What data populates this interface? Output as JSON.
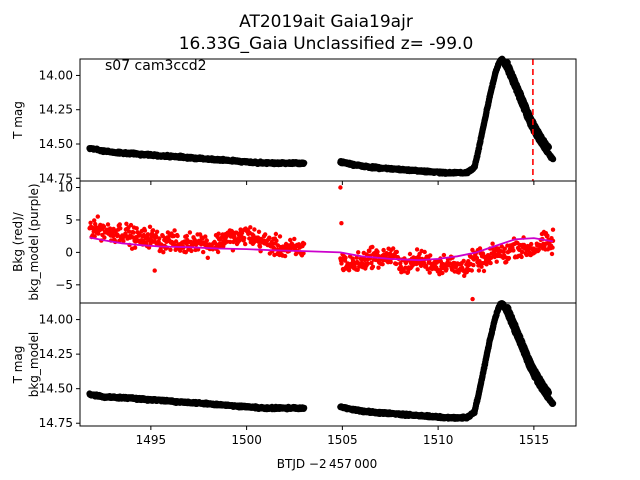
{
  "figure": {
    "title_line1": "AT2019ait  Gaia19ajr",
    "title_line2": "16.33G_Gaia Unclassified z= -99.0",
    "xlabel": "BTJD −2 457 000"
  },
  "colors": {
    "lightcurve": "#000000",
    "background": "#ff0000",
    "bkg_model": "#cc00cc",
    "marker_line": "#ff0000"
  },
  "chart_data": [
    {
      "type": "scatter",
      "panel": "top",
      "annotation": "s07 cam3ccd2",
      "ylabel": "T mag",
      "y_inverted": true,
      "xlim": [
        1491.3,
        1517.2
      ],
      "ylim": [
        14.77,
        13.88
      ],
      "xticks": [
        1495,
        1500,
        1505,
        1510,
        1515
      ],
      "yticks": [
        14.0,
        14.25,
        14.5,
        14.75
      ],
      "ytick_labels": [
        "14.00",
        "14.25",
        "14.50",
        "14.75"
      ],
      "vline_x": 1514.95,
      "series": [
        {
          "x": [
            1491.8,
            1492.5,
            1493.0,
            1494.0,
            1495.0,
            1496.0,
            1497.0,
            1498.0,
            1499.0,
            1500.0,
            1501.0,
            1502.0,
            1503.0
          ],
          "y": [
            14.53,
            14.55,
            14.56,
            14.57,
            14.58,
            14.59,
            14.6,
            14.61,
            14.62,
            14.63,
            14.64,
            14.64,
            14.64
          ]
        },
        {
          "x": [
            1504.9,
            1505.5,
            1506.5,
            1507.5,
            1508.5,
            1509.5,
            1510.5,
            1511.5,
            1511.9,
            1512.1,
            1512.4,
            1512.7,
            1513.0,
            1513.2,
            1513.35,
            1513.6,
            1513.9,
            1514.2,
            1514.5,
            1514.8,
            1515.1,
            1515.4,
            1515.7,
            1516.0
          ],
          "y": [
            14.63,
            14.65,
            14.67,
            14.68,
            14.69,
            14.7,
            14.71,
            14.71,
            14.67,
            14.55,
            14.35,
            14.15,
            13.98,
            13.9,
            13.88,
            13.95,
            14.05,
            14.15,
            14.25,
            14.35,
            14.43,
            14.5,
            14.56,
            14.61
          ]
        }
      ]
    },
    {
      "type": "scatter",
      "panel": "middle",
      "ylabel": "Bkg (red)/\nbkg_model (purple)",
      "xlim": [
        1491.3,
        1517.2
      ],
      "ylim": [
        -7.8,
        11.0
      ],
      "yticks": [
        -5,
        0,
        5,
        10
      ],
      "ytick_labels": [
        "−5",
        "0",
        "5",
        "10"
      ],
      "series": [
        {
          "name": "bkg",
          "x": [
            1491.8,
            1492.5,
            1493.0,
            1493.5,
            1494.0,
            1494.5,
            1495.0,
            1495.5,
            1496.0,
            1496.5,
            1497.0,
            1497.5,
            1498.0,
            1498.5,
            1499.0,
            1499.5,
            1500.0,
            1500.5,
            1501.0,
            1501.5,
            1502.0,
            1502.5,
            1503.0,
            1504.9,
            1505.3,
            1506.0,
            1506.5,
            1507.0,
            1507.5,
            1508.0,
            1508.5,
            1509.0,
            1509.5,
            1510.0,
            1510.5,
            1511.0,
            1511.5,
            1512.0,
            1512.5,
            1513.0,
            1513.5,
            1514.0,
            1514.5,
            1515.0,
            1515.5,
            1516.0
          ],
          "y": [
            4.0,
            3.5,
            3.0,
            3.2,
            2.5,
            2.0,
            2.5,
            1.5,
            2.0,
            1.0,
            1.5,
            2.0,
            1.0,
            1.5,
            2.5,
            2.0,
            3.0,
            2.0,
            1.5,
            1.0,
            0.5,
            0.5,
            0.5,
            -1.0,
            -2.0,
            -1.5,
            -0.5,
            -1.0,
            -0.5,
            -1.5,
            -2.0,
            -1.0,
            -1.5,
            -2.0,
            -1.5,
            -2.5,
            -2.0,
            -1.0,
            -1.5,
            0.0,
            -0.5,
            1.0,
            0.5,
            0.5,
            1.5,
            1.0
          ]
        },
        {
          "name": "bkg_model",
          "x": [
            1491.8,
            1492.5,
            1493.5,
            1494.5,
            1495.5,
            1497.0,
            1498.5,
            1500.0,
            1501.5,
            1503.0,
            1504.9,
            1506.0,
            1507.5,
            1509.0,
            1510.0,
            1511.0,
            1512.0,
            1513.0,
            1514.0,
            1515.0,
            1516.0
          ],
          "y": [
            2.3,
            1.9,
            1.4,
            1.1,
            0.9,
            0.8,
            0.6,
            0.5,
            0.3,
            0.2,
            0.0,
            -0.6,
            -1.0,
            -1.2,
            -1.0,
            -0.6,
            0.0,
            1.0,
            2.0,
            2.2,
            1.7
          ]
        }
      ]
    },
    {
      "type": "scatter",
      "panel": "bottom",
      "ylabel": "T mag\nbkg_model",
      "y_inverted": true,
      "xlim": [
        1491.3,
        1517.2
      ],
      "ylim": [
        14.77,
        13.88
      ],
      "xticks": [
        1495,
        1500,
        1505,
        1510,
        1515
      ],
      "xtick_labels": [
        "1495",
        "1500",
        "1505",
        "1510",
        "1515"
      ],
      "yticks": [
        14.0,
        14.25,
        14.5,
        14.75
      ],
      "ytick_labels": [
        "14.00",
        "14.25",
        "14.50",
        "14.75"
      ],
      "series": [
        {
          "x": [
            1491.8,
            1492.5,
            1493.0,
            1494.0,
            1495.0,
            1496.0,
            1497.0,
            1498.0,
            1499.0,
            1500.0,
            1501.0,
            1502.0,
            1503.0
          ],
          "y": [
            14.54,
            14.56,
            14.56,
            14.57,
            14.58,
            14.59,
            14.6,
            14.61,
            14.62,
            14.63,
            14.64,
            14.64,
            14.64
          ]
        },
        {
          "x": [
            1504.9,
            1505.5,
            1506.5,
            1507.5,
            1508.5,
            1509.5,
            1510.5,
            1511.5,
            1511.9,
            1512.1,
            1512.4,
            1512.7,
            1513.0,
            1513.2,
            1513.35,
            1513.6,
            1513.9,
            1514.2,
            1514.5,
            1514.8,
            1515.1,
            1515.4,
            1515.7,
            1516.0
          ],
          "y": [
            14.63,
            14.65,
            14.67,
            14.68,
            14.69,
            14.7,
            14.71,
            14.71,
            14.67,
            14.55,
            14.35,
            14.15,
            13.98,
            13.9,
            13.88,
            13.95,
            14.05,
            14.15,
            14.25,
            14.35,
            14.43,
            14.5,
            14.56,
            14.61
          ]
        }
      ]
    }
  ]
}
